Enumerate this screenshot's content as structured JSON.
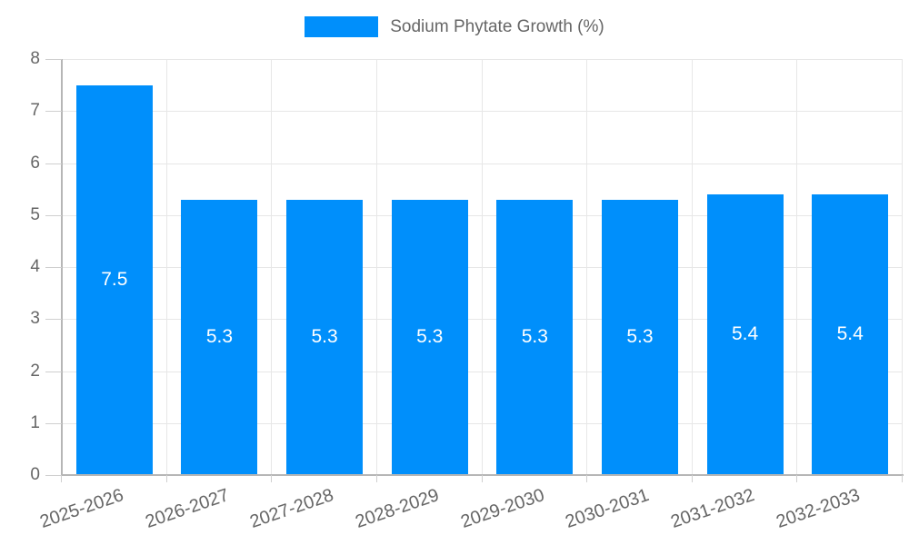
{
  "legend": {
    "label": "Sodium Phytate Growth (%)"
  },
  "colors": {
    "bar": "#008FFB",
    "grid": "#e7e7e7",
    "axis": "#b6b6b6",
    "tick": "#cfcfcf",
    "axis_label": "#666666",
    "bar_label": "#ffffff",
    "background": "#ffffff"
  },
  "chart_data": {
    "type": "bar",
    "title": "",
    "categories": [
      "2025-2026",
      "2026-2027",
      "2027-2028",
      "2028-2029",
      "2029-2030",
      "2030-2031",
      "2031-2032",
      "2032-2033"
    ],
    "series": [
      {
        "name": "Sodium Phytate Growth (%)",
        "values": [
          7.5,
          5.3,
          5.3,
          5.3,
          5.3,
          5.3,
          5.4,
          5.4
        ]
      }
    ],
    "data_labels": [
      "7.5",
      "5.3",
      "5.3",
      "5.3",
      "5.3",
      "5.3",
      "5.4",
      "5.4"
    ],
    "xlabel": "",
    "ylabel": "",
    "ylim": [
      0,
      8
    ],
    "ytick_step": 1,
    "yticks": [
      0,
      1,
      2,
      3,
      4,
      5,
      6,
      7,
      8
    ],
    "grid": true,
    "legend_position": "top"
  }
}
